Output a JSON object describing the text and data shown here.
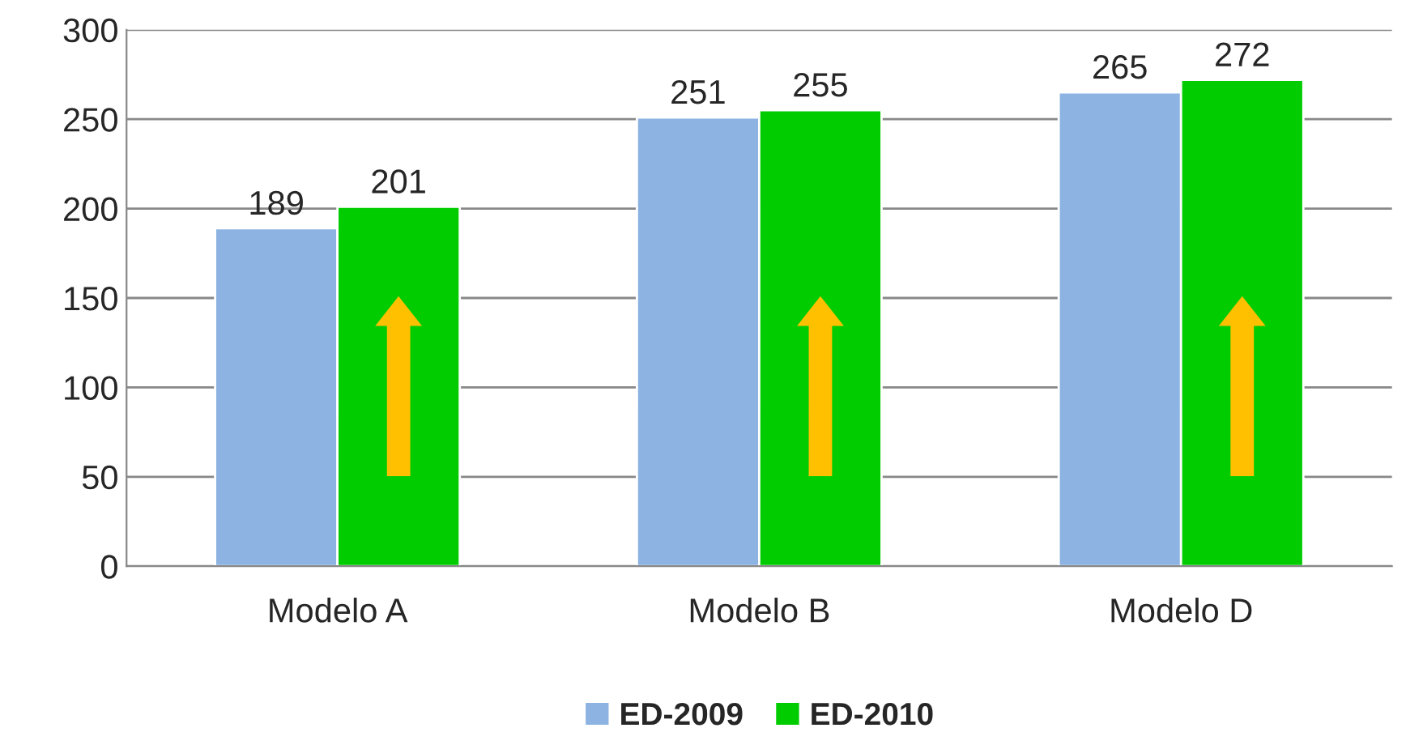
{
  "chart_data": {
    "type": "bar",
    "categories": [
      "Modelo A",
      "Modelo B",
      "Modelo D"
    ],
    "series": [
      {
        "name": "ED-2009",
        "color": "#8db3e2",
        "values": [
          189,
          251,
          265
        ]
      },
      {
        "name": "ED-2010",
        "color": "#00cc00",
        "values": [
          201,
          255,
          272
        ]
      }
    ],
    "ylim": [
      0,
      300
    ],
    "yticks": [
      0,
      50,
      100,
      150,
      200,
      250,
      300
    ],
    "grid": "y",
    "legend": "bottom",
    "data_labels": true
  }
}
